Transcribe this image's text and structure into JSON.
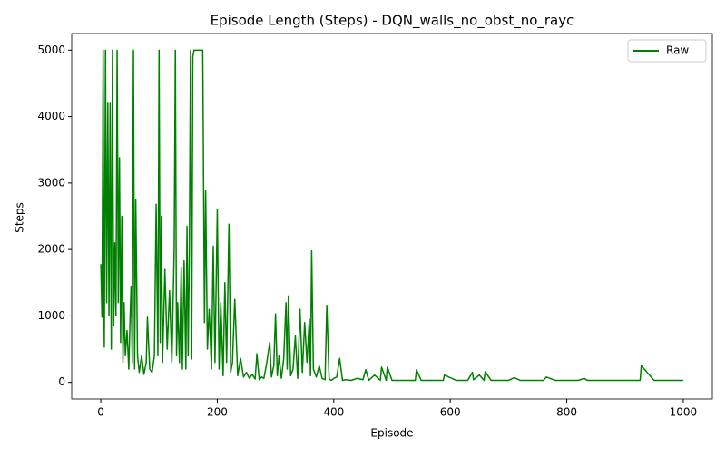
{
  "chart_data": {
    "type": "line",
    "title": "Episode Length (Steps) - DQN_walls_no_obst_no_rayc",
    "xlabel": "Episode",
    "ylabel": "Steps",
    "x": [
      0,
      2,
      4,
      5,
      6,
      8,
      10,
      12,
      14,
      16,
      18,
      20,
      22,
      24,
      26,
      28,
      30,
      32,
      34,
      36,
      38,
      40,
      42,
      45,
      48,
      50,
      52,
      54,
      56,
      58,
      60,
      63,
      66,
      70,
      74,
      78,
      80,
      84,
      88,
      92,
      95,
      98,
      100,
      102,
      104,
      106,
      110,
      114,
      118,
      122,
      126,
      128,
      130,
      132,
      135,
      138,
      140,
      143,
      146,
      148,
      150,
      152,
      154,
      156,
      158,
      160,
      165,
      170,
      175,
      178,
      180,
      183,
      186,
      190,
      193,
      196,
      200,
      203,
      206,
      210,
      213,
      216,
      220,
      223,
      226,
      230,
      235,
      240,
      245,
      250,
      255,
      260,
      265,
      268,
      272,
      276,
      280,
      285,
      290,
      293,
      297,
      300,
      303,
      306,
      310,
      314,
      318,
      320,
      322,
      326,
      330,
      334,
      338,
      342,
      346,
      350,
      354,
      358,
      360,
      362,
      365,
      370,
      375,
      380,
      385,
      388,
      392,
      396,
      400,
      405,
      410,
      415,
      420,
      430,
      440,
      450,
      455,
      460,
      470,
      480,
      482,
      490,
      492,
      500,
      520,
      540,
      542,
      550,
      570,
      588,
      590,
      610,
      630,
      638,
      640,
      650,
      658,
      660,
      670,
      700,
      710,
      720,
      750,
      760,
      765,
      780,
      800,
      820,
      830,
      835,
      850,
      880,
      900,
      926,
      928,
      950,
      980,
      1000
    ],
    "series": [
      {
        "name": "Raw",
        "color": "#008000",
        "values": [
          1780,
          980,
          5000,
          1500,
          530,
          5000,
          1200,
          4200,
          1000,
          4200,
          500,
          5000,
          850,
          2100,
          1000,
          5000,
          1200,
          3380,
          600,
          2500,
          300,
          1200,
          400,
          780,
          200,
          900,
          1450,
          300,
          5000,
          200,
          2750,
          400,
          150,
          400,
          120,
          300,
          980,
          200,
          150,
          400,
          2680,
          400,
          5000,
          600,
          2500,
          300,
          1700,
          500,
          1380,
          300,
          2000,
          5000,
          400,
          1200,
          300,
          1730,
          200,
          1830,
          200,
          2350,
          400,
          1950,
          5000,
          350,
          4900,
          5000,
          5000,
          5000,
          5000,
          900,
          2880,
          500,
          1100,
          200,
          2050,
          300,
          2600,
          200,
          1200,
          100,
          1500,
          300,
          2380,
          150,
          300,
          1250,
          100,
          360,
          80,
          150,
          60,
          120,
          50,
          430,
          40,
          80,
          60,
          300,
          600,
          80,
          250,
          1030,
          100,
          400,
          60,
          350,
          1200,
          200,
          1300,
          100,
          200,
          700,
          60,
          1100,
          150,
          900,
          300,
          950,
          100,
          1980,
          200,
          80,
          250,
          60,
          40,
          1160,
          50,
          30,
          60,
          80,
          360,
          30,
          40,
          30,
          60,
          40,
          190,
          30,
          110,
          30,
          230,
          30,
          230,
          30,
          30,
          30,
          190,
          30,
          30,
          30,
          110,
          30,
          30,
          150,
          40,
          110,
          30,
          160,
          30,
          30,
          70,
          30,
          30,
          30,
          80,
          30,
          30,
          30,
          60,
          30,
          30,
          30,
          30,
          30,
          250,
          30,
          30,
          30
        ]
      }
    ],
    "xlim": [
      -50,
      1050
    ],
    "xticks": [
      0,
      200,
      400,
      600,
      800,
      1000
    ],
    "ylim": [
      -250,
      5250
    ],
    "yticks": [
      0,
      1000,
      2000,
      3000,
      4000,
      5000
    ],
    "legend": "upper right"
  }
}
